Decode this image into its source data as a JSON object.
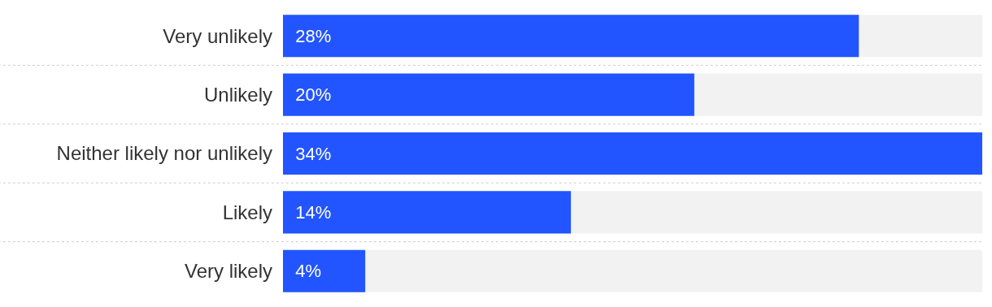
{
  "chart_data": {
    "type": "bar",
    "orientation": "horizontal",
    "categories": [
      "Very unlikely",
      "Unlikely",
      "Neither likely nor unlikely",
      "Likely",
      "Very likely"
    ],
    "values": [
      28,
      20,
      34,
      14,
      4
    ],
    "value_labels": [
      "28%",
      "20%",
      "34%",
      "14%",
      "4%"
    ],
    "color": "#2255ff",
    "xlim": [
      0,
      34
    ],
    "tick_labels": "y"
  }
}
